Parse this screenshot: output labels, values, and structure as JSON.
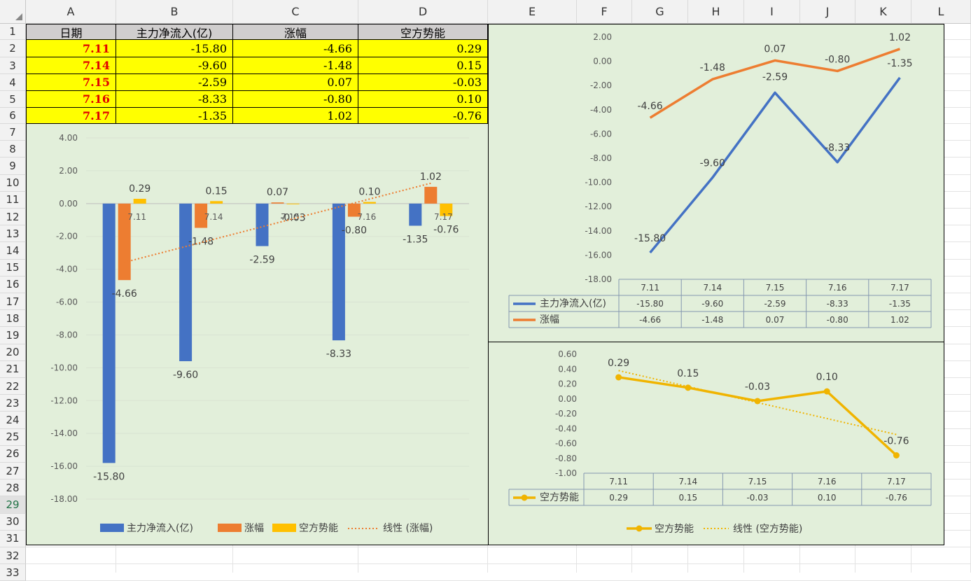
{
  "sheet": {
    "columns": [
      "A",
      "B",
      "C",
      "D",
      "E",
      "F",
      "G",
      "H",
      "I",
      "J",
      "K",
      "L"
    ],
    "rows": [
      "1",
      "2",
      "3",
      "4",
      "5",
      "6",
      "7",
      "8",
      "9",
      "10",
      "11",
      "12",
      "13",
      "14",
      "15",
      "16",
      "17",
      "18",
      "19",
      "20",
      "21",
      "22",
      "23",
      "24",
      "25",
      "26",
      "27",
      "28",
      "29",
      "30",
      "31",
      "32",
      "33"
    ],
    "active_row": "29"
  },
  "table": {
    "headers": [
      "日期",
      "主力净流入(亿)",
      "涨幅",
      "空方势能"
    ],
    "rows": [
      [
        "7.11",
        "-15.80",
        "-4.66",
        "0.29"
      ],
      [
        "7.14",
        "-9.60",
        "-1.48",
        "0.15"
      ],
      [
        "7.15",
        "-2.59",
        "0.07",
        "-0.03"
      ],
      [
        "7.16",
        "-8.33",
        "-0.80",
        "0.10"
      ],
      [
        "7.17",
        "-1.35",
        "1.02",
        "-0.76"
      ]
    ]
  },
  "colors": {
    "blue": "#4472c4",
    "orange": "#ed7d31",
    "gold": "#ffc000",
    "gold_line": "#f0b400",
    "chart_bg": "#e2efda",
    "cell_yellow": "#ffff00",
    "header_grey": "#d0cece",
    "date_red": "#e00000"
  },
  "chart_data": [
    {
      "type": "bar",
      "categories": [
        "7.11",
        "7.14",
        "7.15",
        "7.16",
        "7.17"
      ],
      "series": [
        {
          "name": "主力净流入(亿)",
          "values": [
            -15.8,
            -9.6,
            -2.59,
            -8.33,
            -1.35
          ],
          "labels": [
            "-15.80",
            "-9.60",
            "-2.59",
            "-8.33",
            "-1.35"
          ]
        },
        {
          "name": "涨幅",
          "values": [
            -4.66,
            -1.48,
            0.07,
            -0.8,
            1.02
          ],
          "labels": [
            "-4.66",
            "-1.48",
            "0.07",
            "-0.80",
            "1.02"
          ]
        },
        {
          "name": "空方势能",
          "values": [
            0.29,
            0.15,
            -0.03,
            0.1,
            -0.76
          ],
          "labels": [
            "0.29",
            "0.15",
            "-0.03",
            "0.10",
            "-0.76"
          ]
        }
      ],
      "trendline": {
        "name": "线性 (涨幅)"
      },
      "ylim": [
        -18,
        4
      ],
      "yticks": [
        "4.00",
        "2.00",
        "0.00",
        "-2.00",
        "-4.00",
        "-6.00",
        "-8.00",
        "-10.00",
        "-12.00",
        "-14.00",
        "-16.00",
        "-18.00"
      ],
      "legend": "bottom"
    },
    {
      "type": "line",
      "categories": [
        "7.11",
        "7.14",
        "7.15",
        "7.16",
        "7.17"
      ],
      "series": [
        {
          "name": "主力净流入(亿)",
          "values": [
            -15.8,
            -9.6,
            -2.59,
            -8.33,
            -1.35
          ],
          "labels": [
            "-15.80",
            "-9.60",
            "-2.59",
            "-8.33",
            "-1.35"
          ]
        },
        {
          "name": "涨幅",
          "values": [
            -4.66,
            -1.48,
            0.07,
            -0.8,
            1.02
          ],
          "labels": [
            "-4.66",
            "-1.48",
            "0.07",
            "-0.80",
            "1.02"
          ]
        }
      ],
      "ylim": [
        -18,
        2
      ],
      "yticks": [
        "2.00",
        "0.00",
        "-2.00",
        "-4.00",
        "-6.00",
        "-8.00",
        "-10.00",
        "-12.00",
        "-14.00",
        "-16.00",
        "-18.00"
      ],
      "data_table": true
    },
    {
      "type": "line",
      "categories": [
        "7.11",
        "7.14",
        "7.15",
        "7.16",
        "7.17"
      ],
      "series": [
        {
          "name": "空方势能",
          "values": [
            0.29,
            0.15,
            -0.03,
            0.1,
            -0.76
          ],
          "labels": [
            "0.29",
            "0.15",
            "-0.03",
            "0.10",
            "-0.76"
          ]
        }
      ],
      "trendline": {
        "name": "线性 (空方势能)"
      },
      "ylim": [
        -1,
        0.6
      ],
      "yticks": [
        "0.60",
        "0.40",
        "0.20",
        "0.00",
        "-0.20",
        "-0.40",
        "-0.60",
        "-0.80",
        "-1.00"
      ],
      "data_table": true,
      "legend": "bottom"
    }
  ]
}
